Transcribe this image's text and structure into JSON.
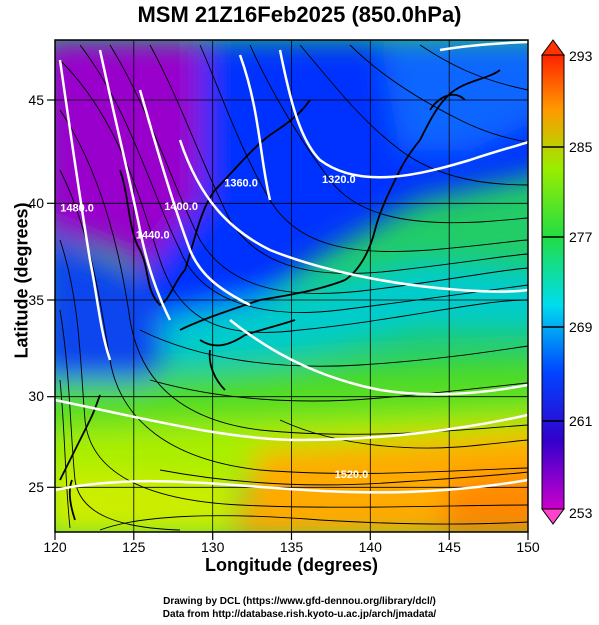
{
  "title": "MSM 21Z16Feb2025 (850.0hPa)",
  "x_axis": {
    "label": "Longitude (degrees)",
    "ticks": [
      "120",
      "125",
      "130",
      "135",
      "140",
      "145",
      "150"
    ]
  },
  "y_axis": {
    "label": "Latitude  (degrees)",
    "ticks": [
      "25",
      "30",
      "35",
      "40",
      "45"
    ]
  },
  "colorbar": {
    "ticks": [
      "293",
      "285",
      "277",
      "269",
      "261",
      "253"
    ]
  },
  "contour_labels": [
    {
      "text": "1320.0",
      "lon": 138.0,
      "lat": 40.8
    },
    {
      "text": "1360.0",
      "lon": 131.8,
      "lat": 40.6
    },
    {
      "text": "1400.0",
      "lon": 128.0,
      "lat": 39.4
    },
    {
      "text": "1440.0",
      "lon": 126.2,
      "lat": 37.9
    },
    {
      "text": "1480.0",
      "lon": 121.4,
      "lat": 39.3
    },
    {
      "text": "1520.0",
      "lon": 138.8,
      "lat": 25.5
    }
  ],
  "credits": {
    "line1": "Drawing by DCL (https://www.gfd-dennou.org/library/dcl/)",
    "line2": "Data from http://database.rish.kyoto-u.ac.jp/arch/jmadata/"
  }
}
